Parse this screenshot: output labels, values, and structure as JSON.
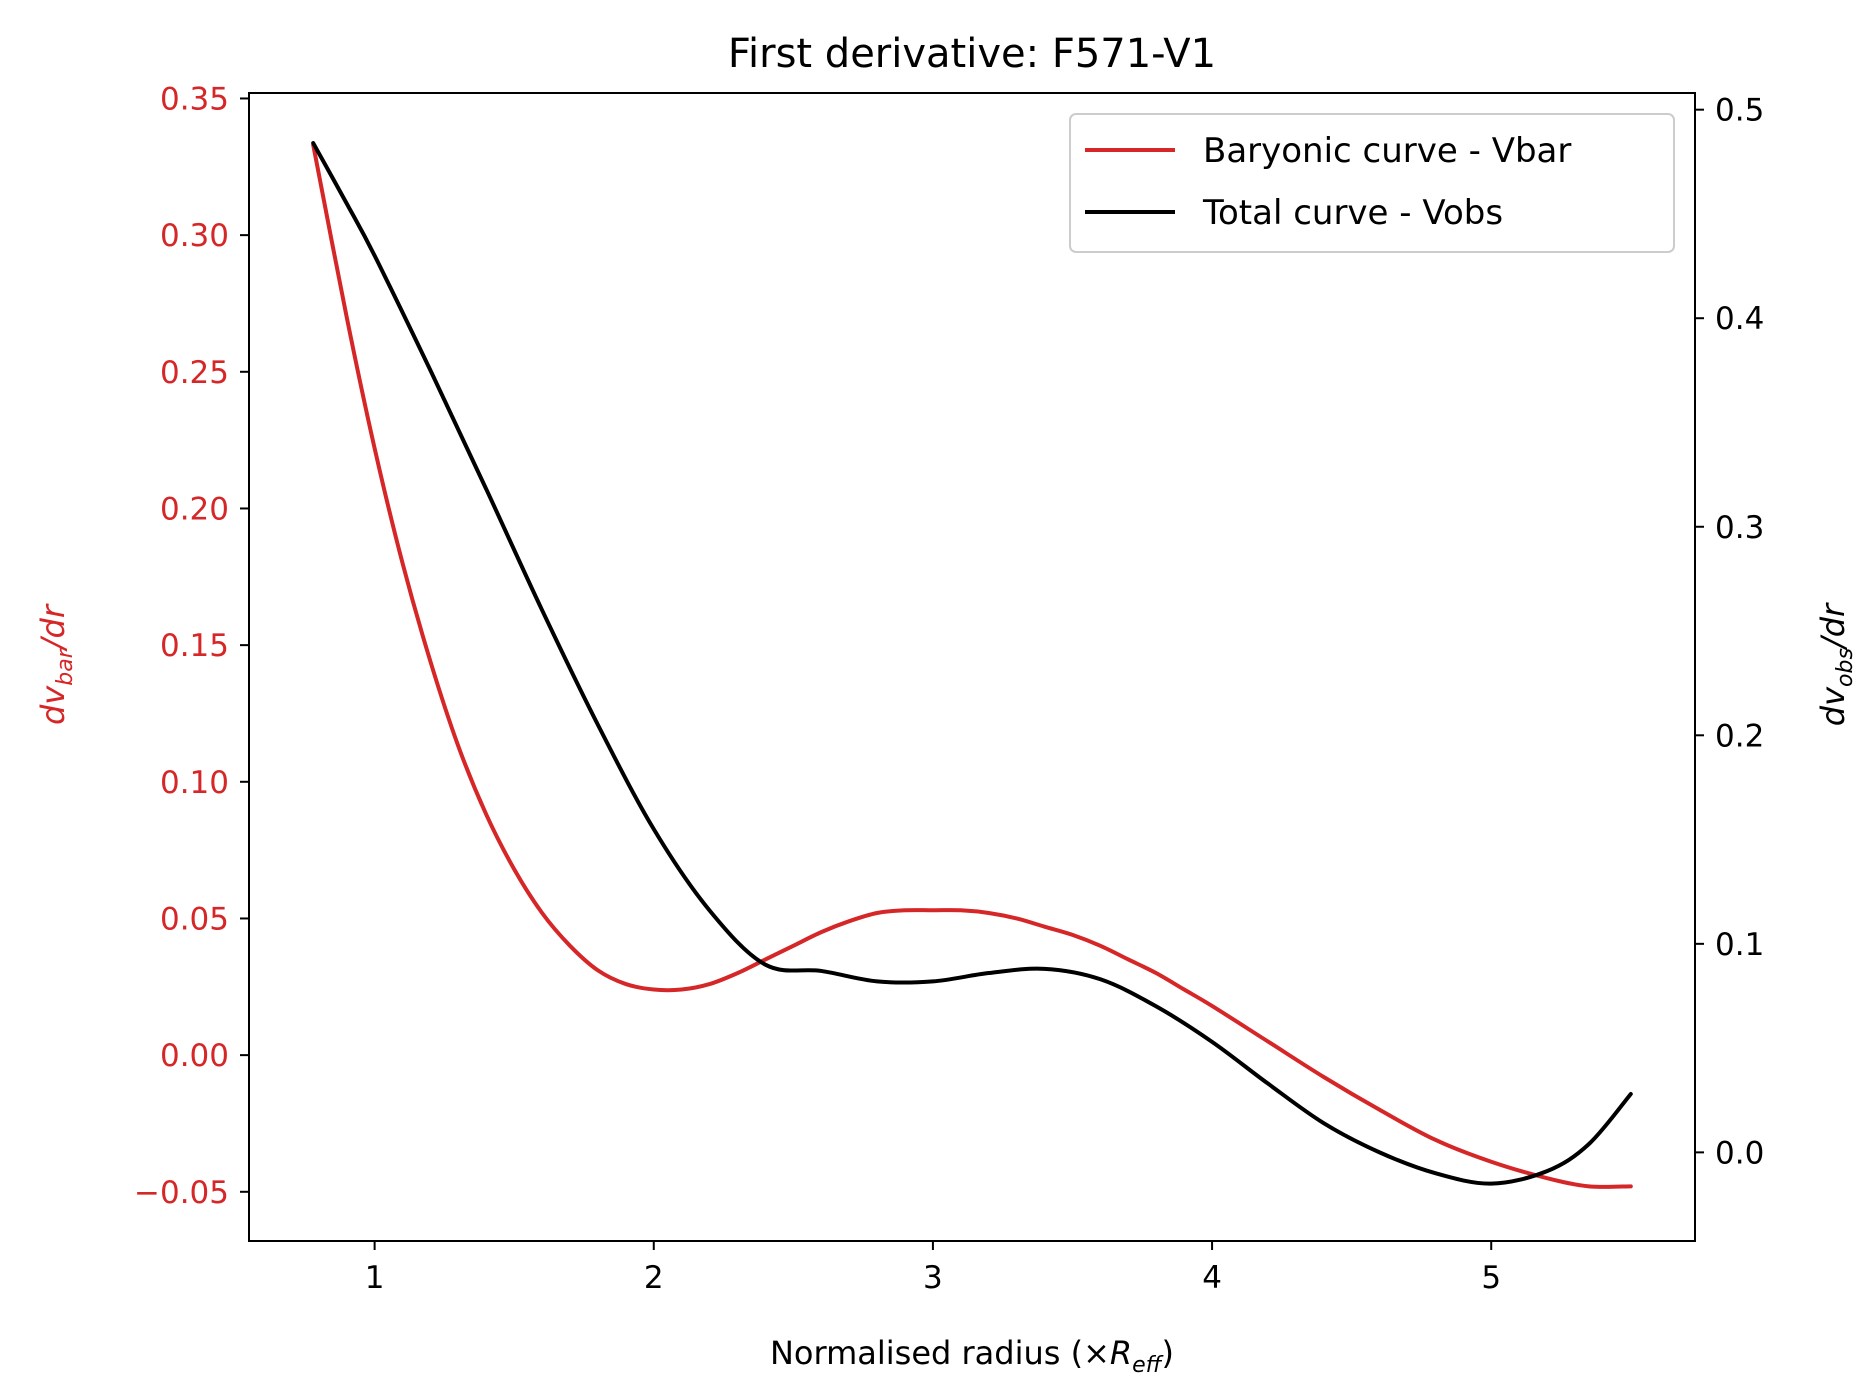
{
  "chart_data": {
    "type": "line",
    "title": "First derivative: F571-V1",
    "xlabel": {
      "prefix": "Normalised radius (×",
      "var": "R",
      "sub": "eff",
      "suffix": ")"
    },
    "ylabel_left": {
      "prefix": "dv",
      "sub": "bar",
      "suffix": "/dr"
    },
    "ylabel_right": {
      "prefix": "dv",
      "sub": "obs",
      "suffix": "/dr"
    },
    "xlim": [
      0.55,
      5.73
    ],
    "ylim_left": [
      -0.068,
      0.352
    ],
    "ylim_right": [
      -0.0425,
      0.508
    ],
    "x_ticks": [
      1,
      2,
      3,
      4,
      5
    ],
    "y_left_ticks": [
      -0.05,
      0.0,
      0.05,
      0.1,
      0.15,
      0.2,
      0.25,
      0.3,
      0.35
    ],
    "y_left_tick_labels": [
      "−0.05",
      "0.00",
      "0.05",
      "0.10",
      "0.15",
      "0.20",
      "0.25",
      "0.30",
      "0.35"
    ],
    "y_right_ticks": [
      0.0,
      0.1,
      0.2,
      0.3,
      0.4,
      0.5
    ],
    "y_right_tick_labels": [
      "0.0",
      "0.1",
      "0.2",
      "0.3",
      "0.4",
      "0.5"
    ],
    "grid": false,
    "legend_position": "top-right",
    "series": [
      {
        "name": "Baryonic curve - Vbar",
        "axis": "left",
        "color": "#d62728",
        "x": [
          0.78,
          0.9,
          1.0,
          1.1,
          1.2,
          1.3,
          1.4,
          1.5,
          1.6,
          1.7,
          1.8,
          1.9,
          2.0,
          2.1,
          2.2,
          2.3,
          2.4,
          2.5,
          2.6,
          2.7,
          2.8,
          2.9,
          3.0,
          3.1,
          3.2,
          3.3,
          3.4,
          3.5,
          3.6,
          3.7,
          3.8,
          3.9,
          4.0,
          4.2,
          4.4,
          4.6,
          4.8,
          5.0,
          5.2,
          5.35,
          5.5
        ],
        "y": [
          0.333,
          0.27,
          0.222,
          0.18,
          0.144,
          0.113,
          0.088,
          0.068,
          0.052,
          0.04,
          0.031,
          0.026,
          0.024,
          0.024,
          0.026,
          0.03,
          0.035,
          0.04,
          0.045,
          0.049,
          0.052,
          0.053,
          0.053,
          0.053,
          0.052,
          0.05,
          0.047,
          0.044,
          0.04,
          0.035,
          0.03,
          0.024,
          0.018,
          0.005,
          -0.008,
          -0.02,
          -0.031,
          -0.039,
          -0.045,
          -0.048,
          -0.048
        ]
      },
      {
        "name": "Total curve - Vobs",
        "axis": "right",
        "color": "#000000",
        "x": [
          0.78,
          0.9,
          1.0,
          1.2,
          1.4,
          1.6,
          1.8,
          2.0,
          2.2,
          2.4,
          2.6,
          2.8,
          3.0,
          3.2,
          3.4,
          3.6,
          3.8,
          4.0,
          4.2,
          4.4,
          4.6,
          4.8,
          5.0,
          5.2,
          5.35,
          5.5
        ],
        "y": [
          0.484,
          0.455,
          0.43,
          0.375,
          0.318,
          0.26,
          0.205,
          0.155,
          0.116,
          0.09,
          0.087,
          0.082,
          0.082,
          0.086,
          0.088,
          0.083,
          0.07,
          0.053,
          0.033,
          0.014,
          0.0,
          -0.01,
          -0.015,
          -0.009,
          0.004,
          0.028
        ]
      }
    ]
  }
}
